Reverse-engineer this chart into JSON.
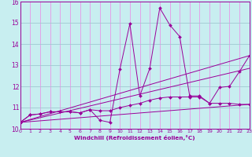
{
  "xlabel": "Windchill (Refroidissement éolien,°C)",
  "xlim": [
    0,
    23
  ],
  "ylim": [
    10,
    16
  ],
  "xticks": [
    0,
    1,
    2,
    3,
    4,
    5,
    6,
    7,
    8,
    9,
    10,
    11,
    12,
    13,
    14,
    15,
    16,
    17,
    18,
    19,
    20,
    21,
    22,
    23
  ],
  "yticks": [
    10,
    11,
    12,
    13,
    14,
    15,
    16
  ],
  "bg_color": "#c8eef0",
  "vgrid_color": "#e896e8",
  "hgrid_color": "#a0c8d0",
  "line_color": "#990099",
  "lines": [
    {
      "x": [
        0,
        1,
        2,
        3,
        4,
        5,
        6,
        7,
        8,
        9,
        10,
        11,
        12,
        13,
        14,
        15,
        16,
        17,
        18,
        19,
        20,
        21,
        22,
        23
      ],
      "y": [
        10.3,
        10.65,
        10.7,
        10.8,
        10.8,
        10.8,
        10.75,
        10.9,
        10.4,
        10.3,
        12.8,
        14.95,
        11.55,
        12.85,
        15.7,
        14.9,
        14.35,
        11.55,
        11.55,
        11.2,
        11.95,
        12.0,
        12.7,
        13.45
      ],
      "markers": true,
      "linestyle": "-"
    },
    {
      "x": [
        0,
        1,
        2,
        3,
        4,
        5,
        6,
        7,
        8,
        9,
        10,
        11,
        12,
        13,
        14,
        15,
        16,
        17,
        18,
        19,
        20,
        21,
        22,
        23
      ],
      "y": [
        10.3,
        10.65,
        10.7,
        10.8,
        10.8,
        10.8,
        10.75,
        10.9,
        10.85,
        10.85,
        11.0,
        11.1,
        11.2,
        11.35,
        11.45,
        11.5,
        11.5,
        11.5,
        11.5,
        11.2,
        11.2,
        11.2,
        11.15,
        11.15
      ],
      "markers": true,
      "linestyle": "-"
    },
    {
      "x": [
        0,
        23
      ],
      "y": [
        10.3,
        13.45
      ],
      "markers": false,
      "linestyle": "-"
    },
    {
      "x": [
        0,
        23
      ],
      "y": [
        10.3,
        12.85
      ],
      "markers": false,
      "linestyle": "-"
    },
    {
      "x": [
        0,
        23
      ],
      "y": [
        10.3,
        11.15
      ],
      "markers": false,
      "linestyle": "-"
    }
  ]
}
